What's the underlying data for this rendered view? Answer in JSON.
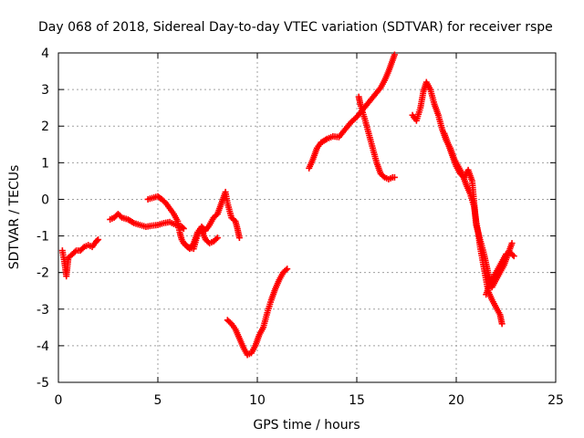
{
  "chart_data": {
    "type": "scatter",
    "title": "Day 068 of 2018, Sidereal Day-to-day VTEC variation (SDTVAR) for receiver rspe",
    "xlabel": "GPS time / hours",
    "ylabel": "SDTVAR / TECUs",
    "xlim": [
      0,
      25
    ],
    "ylim": [
      -5,
      4
    ],
    "x_ticks": [
      "0",
      "5",
      "10",
      "15",
      "20",
      "25"
    ],
    "y_ticks": [
      "-5",
      "-4",
      "-3",
      "-2",
      "-1",
      "0",
      "1",
      "2",
      "3",
      "4"
    ],
    "grid": true,
    "marker": "+",
    "color": "#ff0000",
    "segments": [
      {
        "x": [
          0.2,
          0.3,
          0.4,
          0.5,
          0.7,
          0.9,
          1.1,
          1.3,
          1.5,
          1.7,
          1.9,
          2.0
        ],
        "y": [
          -1.4,
          -1.7,
          -2.1,
          -1.6,
          -1.5,
          -1.4,
          -1.4,
          -1.3,
          -1.25,
          -1.3,
          -1.15,
          -1.1
        ]
      },
      {
        "x": [
          2.6,
          2.8,
          3.0,
          3.2,
          3.5,
          3.8,
          4.1,
          4.4,
          4.7,
          5.0,
          5.3,
          5.6,
          5.9,
          6.2,
          6.3
        ],
        "y": [
          -0.55,
          -0.5,
          -0.4,
          -0.5,
          -0.55,
          -0.65,
          -0.7,
          -0.75,
          -0.72,
          -0.7,
          -0.65,
          -0.62,
          -0.7,
          -0.75,
          -0.8
        ]
      },
      {
        "x": [
          4.5,
          4.8,
          5.0,
          5.2,
          5.4,
          5.6,
          5.8,
          6.0,
          6.1,
          6.2,
          6.3,
          6.5,
          6.8,
          7.0,
          7.2,
          7.4,
          7.6,
          7.8,
          8.0
        ],
        "y": [
          0.0,
          0.05,
          0.08,
          0.0,
          -0.1,
          -0.25,
          -0.4,
          -0.6,
          -0.9,
          -1.1,
          -1.2,
          -1.3,
          -1.35,
          -0.95,
          -0.85,
          -1.1,
          -1.2,
          -1.15,
          -1.05
        ]
      },
      {
        "x": [
          6.4,
          6.6,
          6.8,
          7.0,
          7.2,
          7.4,
          7.6,
          7.8,
          8.0,
          8.2,
          8.4,
          8.5,
          8.7,
          8.9,
          9.0,
          9.1
        ],
        "y": [
          -1.25,
          -1.35,
          -1.2,
          -0.9,
          -0.75,
          -0.85,
          -0.7,
          -0.5,
          -0.4,
          -0.1,
          0.2,
          -0.1,
          -0.5,
          -0.6,
          -0.8,
          -1.05
        ]
      },
      {
        "x": [
          8.5,
          8.7,
          8.9,
          9.1,
          9.3,
          9.5,
          9.7,
          9.9,
          10.1,
          10.3,
          10.5,
          10.7,
          10.9,
          11.1,
          11.3,
          11.5
        ],
        "y": [
          -3.3,
          -3.4,
          -3.55,
          -3.8,
          -4.05,
          -4.25,
          -4.2,
          -4.0,
          -3.7,
          -3.5,
          -3.1,
          -2.75,
          -2.45,
          -2.2,
          -2.0,
          -1.9
        ]
      },
      {
        "x": [
          12.6,
          12.8,
          13.0,
          13.2,
          13.5,
          13.8,
          14.1,
          14.4,
          14.7,
          15.0,
          15.3,
          15.6,
          15.9,
          16.2,
          16.4,
          16.6,
          16.8,
          16.9
        ],
        "y": [
          0.85,
          1.1,
          1.4,
          1.55,
          1.65,
          1.72,
          1.7,
          1.9,
          2.1,
          2.25,
          2.45,
          2.65,
          2.85,
          3.05,
          3.25,
          3.5,
          3.8,
          3.95
        ]
      },
      {
        "x": [
          15.1,
          15.2,
          15.4,
          15.6,
          15.8,
          16.0,
          16.2,
          16.4,
          16.6,
          16.8,
          16.9
        ],
        "y": [
          2.8,
          2.55,
          2.2,
          1.8,
          1.4,
          1.0,
          0.7,
          0.6,
          0.55,
          0.6,
          0.6
        ]
      },
      {
        "x": [
          17.8,
          18.0,
          18.2,
          18.35,
          18.5,
          18.7,
          18.9,
          19.1,
          19.3,
          19.5,
          19.7,
          19.9,
          20.1,
          20.3,
          20.5,
          20.7,
          20.9,
          21.0,
          21.1,
          21.2,
          21.3,
          21.4,
          21.5,
          21.6,
          21.8,
          22.0,
          22.2,
          22.3
        ],
        "y": [
          2.3,
          2.15,
          2.5,
          2.95,
          3.2,
          3.0,
          2.6,
          2.3,
          1.9,
          1.6,
          1.4,
          1.1,
          0.9,
          0.7,
          0.4,
          0.15,
          -0.2,
          -0.6,
          -0.9,
          -1.3,
          -1.6,
          -1.9,
          -2.2,
          -2.5,
          -2.75,
          -2.95,
          -3.15,
          -3.4
        ]
      },
      {
        "x": [
          19.4,
          19.6,
          19.8,
          20.0,
          20.2,
          20.4,
          20.6,
          20.8,
          21.0,
          21.2,
          21.4,
          21.6,
          21.8,
          22.0,
          22.2,
          22.4,
          22.6,
          22.8
        ],
        "y": [
          1.8,
          1.5,
          1.2,
          0.9,
          0.7,
          0.6,
          0.8,
          0.5,
          -0.7,
          -1.1,
          -1.5,
          -2.0,
          -2.4,
          -2.2,
          -2.0,
          -1.8,
          -1.5,
          -1.2
        ]
      },
      {
        "x": [
          21.5,
          21.7,
          21.9,
          22.1,
          22.3,
          22.5,
          22.7,
          22.9
        ],
        "y": [
          -2.6,
          -2.3,
          -2.1,
          -1.9,
          -1.7,
          -1.5,
          -1.45,
          -1.55
        ]
      }
    ]
  }
}
